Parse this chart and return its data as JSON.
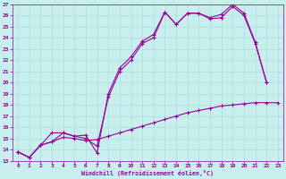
{
  "xlabel": "Windchill (Refroidissement éolien,°C)",
  "xlim": [
    -0.5,
    23.5
  ],
  "ylim": [
    13,
    27
  ],
  "xticks": [
    0,
    1,
    2,
    3,
    4,
    5,
    6,
    7,
    8,
    9,
    10,
    11,
    12,
    13,
    14,
    15,
    16,
    17,
    18,
    19,
    20,
    21,
    22,
    23
  ],
  "yticks": [
    13,
    14,
    15,
    16,
    17,
    18,
    19,
    20,
    21,
    22,
    23,
    24,
    25,
    26,
    27
  ],
  "bg_color": "#c8eeee",
  "line_color": "#990099",
  "grid_color": "#aadddd",
  "line1_x": [
    0,
    1,
    2,
    3,
    4,
    5,
    6,
    7,
    8,
    9,
    10,
    11,
    12,
    13,
    14,
    15,
    16,
    17,
    18,
    19,
    20,
    21,
    22,
    23
  ],
  "line1_y": [
    13.8,
    13.3,
    14.4,
    14.7,
    15.1,
    15.0,
    14.8,
    14.9,
    15.2,
    15.5,
    15.8,
    16.1,
    16.4,
    16.7,
    17.0,
    17.3,
    17.5,
    17.7,
    17.9,
    18.0,
    18.1,
    18.2,
    18.2,
    18.2
  ],
  "line2_x": [
    0,
    1,
    2,
    3,
    4,
    5,
    6,
    7,
    8,
    9,
    10,
    11,
    12,
    13,
    14,
    15,
    16,
    17,
    18,
    19,
    20,
    21,
    22
  ],
  "line2_y": [
    13.8,
    13.3,
    14.4,
    14.7,
    15.5,
    15.2,
    15.0,
    14.3,
    18.7,
    21.0,
    22.0,
    23.5,
    24.0,
    26.3,
    25.2,
    26.2,
    26.2,
    25.7,
    25.8,
    26.8,
    26.0,
    23.5,
    20.0
  ],
  "line3_x": [
    0,
    1,
    2,
    3,
    4,
    5,
    6,
    7,
    8,
    9,
    10,
    11,
    12,
    13,
    14,
    15,
    16,
    17,
    18,
    19,
    20,
    21,
    22
  ],
  "line3_y": [
    13.8,
    13.3,
    14.4,
    15.5,
    15.5,
    15.2,
    15.3,
    13.7,
    19.0,
    21.3,
    22.3,
    23.7,
    24.3,
    26.3,
    25.2,
    26.2,
    26.2,
    25.8,
    26.1,
    27.0,
    26.2,
    23.6,
    20.0
  ]
}
